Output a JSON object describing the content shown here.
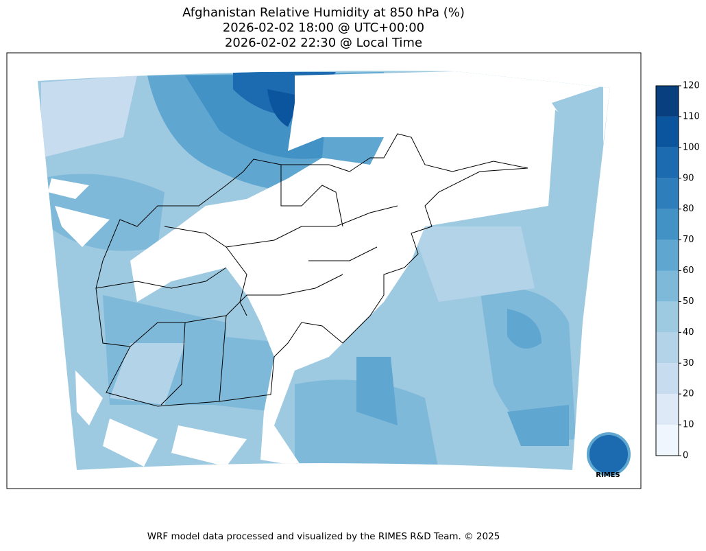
{
  "title": [
    "Afghanistan Relative Humidity at 850 hPa (%)",
    "2026-02-02 18:00 @ UTC+00:00",
    "2026-02-02 22:30 @ Local Time"
  ],
  "colorbar": {
    "ticks": [
      0,
      10,
      20,
      30,
      40,
      50,
      60,
      70,
      80,
      90,
      100,
      110,
      120
    ],
    "colors": [
      "#f0f6fd",
      "#dde9f6",
      "#c8dcf0",
      "#b3d3e8",
      "#9ecae1",
      "#7fb9da",
      "#5fa6d1",
      "#4292c6",
      "#2e7ebc",
      "#1c6aaf",
      "#0b559f",
      "#08407f"
    ]
  },
  "logo": "RIMES",
  "footer": "WRF model data processed and visualized by the RIMES R&D Team. © 2025"
}
